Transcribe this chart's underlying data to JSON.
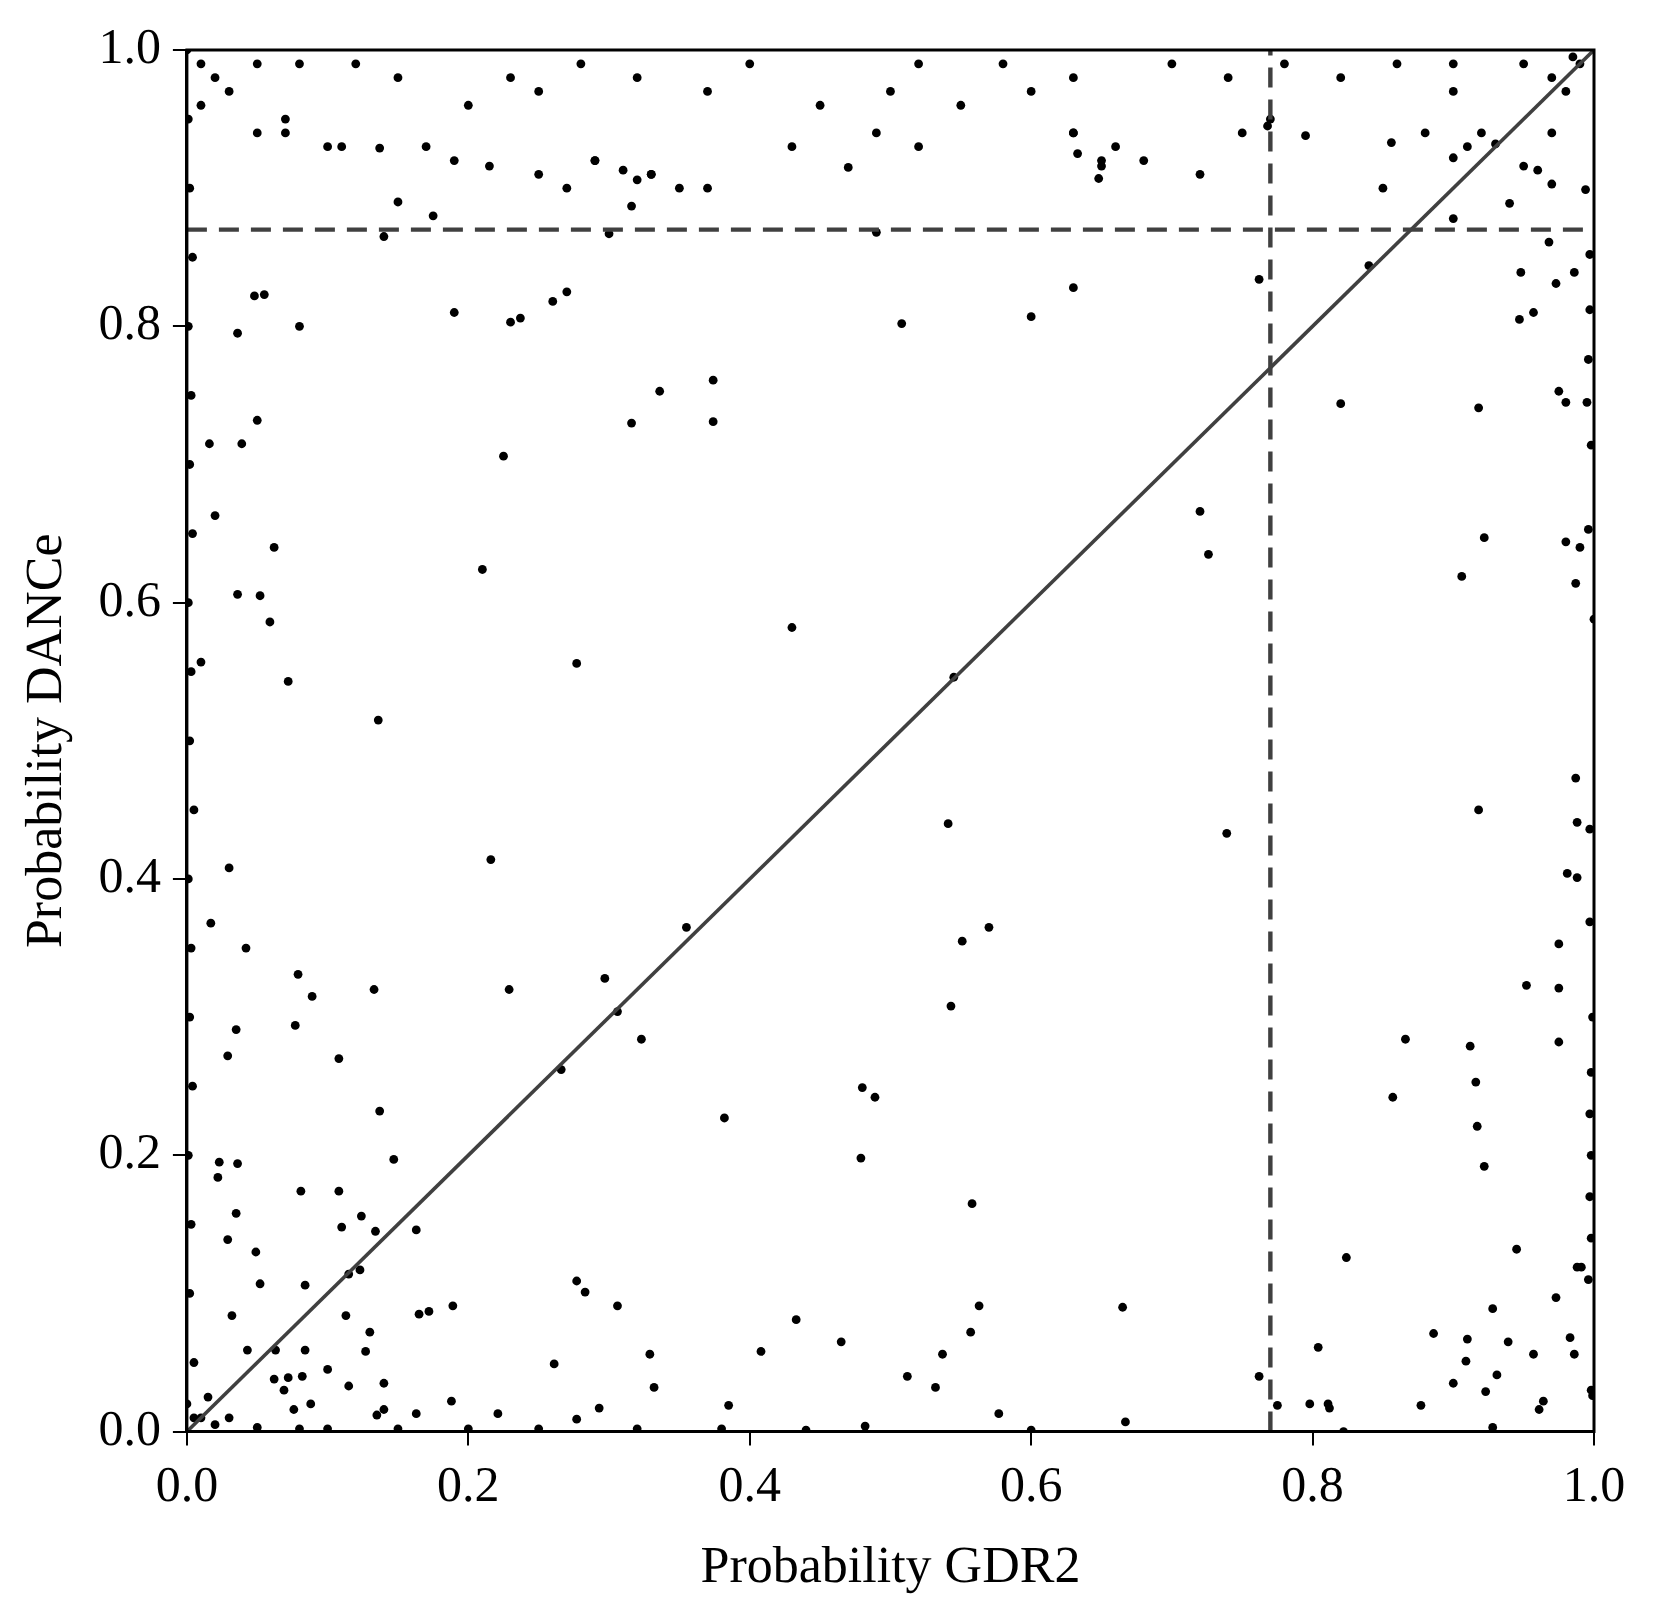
{
  "chart_data": {
    "type": "scatter",
    "xlabel": "Probability GDR2",
    "ylabel": "Probability DANCe",
    "xlim": [
      0,
      1
    ],
    "ylim": [
      0,
      1
    ],
    "xticks": [
      {
        "value": 0,
        "label": "0.0"
      },
      {
        "value": 0.2,
        "label": "0.2"
      },
      {
        "value": 0.4,
        "label": "0.4"
      },
      {
        "value": 0.6,
        "label": "0.6"
      },
      {
        "value": 0.8,
        "label": "0.8"
      },
      {
        "value": 1,
        "label": "1.0"
      }
    ],
    "yticks": [
      {
        "value": 0,
        "label": "0.0"
      },
      {
        "value": 0.2,
        "label": "0.2"
      },
      {
        "value": 0.4,
        "label": "0.4"
      },
      {
        "value": 0.6,
        "label": "0.6"
      },
      {
        "value": 0.8,
        "label": "0.8"
      },
      {
        "value": 1,
        "label": "1.0"
      }
    ],
    "grid": false,
    "legend": false,
    "ref_lines": [
      {
        "axis": "x",
        "value": 0.77,
        "color": "#404040",
        "line_style": "dashed"
      },
      {
        "axis": "y",
        "value": 0.87,
        "color": "#404040",
        "line_style": "dashed"
      }
    ],
    "series": [
      {
        "marker": "circle",
        "color": "#000000",
        "x": [
          0,
          0.01,
          0.02,
          0.01,
          0.03,
          0.05,
          0.07,
          0.08,
          0.12,
          0.15,
          0.2,
          0.23,
          0.25,
          0.28,
          0.32,
          0.37,
          0.4,
          0.45,
          0.5,
          0.52,
          0.55,
          0.58,
          0.63,
          0.65,
          0.7,
          0.74,
          0.78,
          0.82,
          0.86,
          0.9,
          0.95,
          0.97,
          0.99,
          0.985,
          0.98,
          0.05,
          0.07,
          0.1,
          0.11,
          0.17,
          0.19,
          0.25,
          0.27,
          0.29,
          0.33,
          0.37,
          0.43,
          0.49,
          0.52,
          0.6,
          0.63,
          0.66,
          0.68,
          0.72,
          0.75,
          0.77,
          0.85,
          0.88,
          0.9,
          0.91,
          0.92,
          0.97,
          0.137,
          0.215,
          0.29,
          0.31,
          0.32,
          0.33,
          0.316,
          0.35,
          0.47,
          0.15,
          0.175,
          0.14,
          0.3,
          0.49,
          0.048,
          0.055,
          0.036,
          0.08,
          0.19,
          0.23,
          0.237,
          0.26,
          0.27,
          0.336,
          0.374,
          0.374,
          0.316,
          0.05,
          0.039,
          0.016,
          0.225,
          0.02,
          0.062,
          0.21,
          0.036,
          0.052,
          0.059,
          0.43,
          0.277,
          0.072,
          0.136,
          0.01,
          0.508,
          0.6,
          0.63,
          0.762,
          0.84,
          0.9,
          0.94,
          0.9,
          0.95,
          0.96,
          0.97,
          0.93,
          0.968,
          0.948,
          0.986,
          0.973,
          0.947,
          0.957,
          0.82,
          0.918,
          0.975,
          0.98,
          0.995,
          0.998,
          0.72,
          0.726,
          0.922,
          0.98,
          0.99,
          0.996,
          0.906,
          0.987,
          1,
          0.545,
          0.994,
          0.997,
          0.997,
          0.996,
          0.768,
          0.795,
          0.856,
          0.63,
          0.633,
          0.65,
          0.648,
          0.216,
          0.03,
          0.355,
          0.042,
          0.017,
          0.079,
          0.089,
          0.133,
          0.229,
          0.297,
          0.306,
          0.323,
          0.077,
          0.035,
          0.029,
          0.108,
          0.266,
          0.48,
          0.489,
          0.382,
          0.479,
          0.137,
          0.147,
          0.023,
          0.036,
          0.022,
          0.081,
          0.108,
          0.035,
          0.124,
          0.11,
          0.134,
          0.163,
          0.029,
          0.049,
          0.115,
          0.123,
          0.052,
          0.084,
          0.277,
          0.283,
          0.189,
          0.306,
          0.165,
          0.172,
          0.113,
          0.032,
          0.433,
          0.465,
          0.408,
          0.13,
          0.127,
          0.043,
          0.063,
          0.084,
          0.329,
          0.261,
          0.1,
          0.062,
          0.072,
          0.082,
          0.115,
          0.14,
          0.332,
          0.069,
          0.088,
          0.076,
          0.385,
          0.293,
          0.188,
          0.14,
          0.135,
          0.221,
          0.163,
          0.482,
          0.277,
          0.05,
          0.08,
          0.1,
          0.15,
          0.2,
          0.25,
          0.32,
          0.38,
          0.44,
          0.6,
          0,
          0.005,
          0.002,
          0.003,
          0.001,
          0.004,
          0.002,
          0.003,
          0.001,
          0.005,
          0.002,
          0.003,
          0.001,
          0.004,
          0.002,
          0.003,
          0.001,
          0.004,
          0.002,
          0.001,
          0.01,
          0.02,
          0.005,
          0.03,
          0.015,
          0.541,
          0.739,
          0.57,
          0.551,
          0.543,
          0.558,
          0.563,
          0.665,
          0.557,
          0.537,
          0.512,
          0.532,
          0.577,
          0.667,
          0.762,
          0.775,
          0.798,
          0.811,
          0.812,
          0.804,
          0.824,
          0.822,
          0.866,
          0.857,
          0.918,
          0.912,
          0.916,
          0.917,
          0.922,
          0.952,
          0.975,
          0.975,
          0.975,
          0.987,
          0.988,
          0.997,
          0.981,
          0.988,
          0.997,
          0.999,
          0.998,
          0.997,
          0.998,
          0.997,
          0.998,
          0.996,
          0.998,
          0.945,
          0.928,
          0.973,
          0.988,
          0.991,
          0.886,
          0.91,
          0.939,
          0.957,
          0.909,
          0.931,
          0.9,
          0.923,
          0.877,
          0.961,
          0.964,
          0.928,
          0.983,
          0.986,
          0.999
        ],
        "values": [
          1,
          0.99,
          0.98,
          0.96,
          0.97,
          0.99,
          0.95,
          0.99,
          0.99,
          0.98,
          0.96,
          0.98,
          0.97,
          0.99,
          0.98,
          0.97,
          0.99,
          0.96,
          0.97,
          0.99,
          0.96,
          0.99,
          0.98,
          0.92,
          0.99,
          0.98,
          0.99,
          0.98,
          0.99,
          0.99,
          0.99,
          0.98,
          0.99,
          0.995,
          0.97,
          0.94,
          0.94,
          0.93,
          0.93,
          0.93,
          0.92,
          0.91,
          0.9,
          0.92,
          0.91,
          0.9,
          0.93,
          0.94,
          0.93,
          0.97,
          0.94,
          0.93,
          0.92,
          0.91,
          0.94,
          0.95,
          0.9,
          0.94,
          0.97,
          0.93,
          0.94,
          0.94,
          0.929,
          0.916,
          0.92,
          0.913,
          0.906,
          0.91,
          0.887,
          0.9,
          0.915,
          0.89,
          0.88,
          0.865,
          0.867,
          0.868,
          0.822,
          0.823,
          0.795,
          0.8,
          0.81,
          0.803,
          0.806,
          0.818,
          0.825,
          0.753,
          0.761,
          0.731,
          0.73,
          0.732,
          0.715,
          0.715,
          0.706,
          0.663,
          0.64,
          0.624,
          0.606,
          0.605,
          0.586,
          0.582,
          0.556,
          0.543,
          0.515,
          0.557,
          0.802,
          0.807,
          0.828,
          0.834,
          0.844,
          0.878,
          0.889,
          0.922,
          0.916,
          0.913,
          0.903,
          0.932,
          0.861,
          0.839,
          0.839,
          0.831,
          0.805,
          0.81,
          0.744,
          0.741,
          0.753,
          0.745,
          0.745,
          0.714,
          0.666,
          0.635,
          0.647,
          0.644,
          0.64,
          0.653,
          0.619,
          0.614,
          0.588,
          0.546,
          0.899,
          0.852,
          0.812,
          0.776,
          0.945,
          0.938,
          0.933,
          0.94,
          0.925,
          0.916,
          0.907,
          0.414,
          0.408,
          0.365,
          0.35,
          0.368,
          0.331,
          0.315,
          0.32,
          0.32,
          0.328,
          0.304,
          0.284,
          0.294,
          0.291,
          0.272,
          0.27,
          0.262,
          0.249,
          0.242,
          0.227,
          0.198,
          0.232,
          0.197,
          0.195,
          0.194,
          0.184,
          0.174,
          0.174,
          0.158,
          0.156,
          0.148,
          0.145,
          0.146,
          0.139,
          0.13,
          0.114,
          0.117,
          0.107,
          0.106,
          0.109,
          0.101,
          0.091,
          0.091,
          0.085,
          0.087,
          0.084,
          0.084,
          0.081,
          0.065,
          0.058,
          0.072,
          0.058,
          0.059,
          0.059,
          0.059,
          0.056,
          0.049,
          0.045,
          0.038,
          0.039,
          0.04,
          0.033,
          0.035,
          0.032,
          0.03,
          0.02,
          0.016,
          0.019,
          0.017,
          0.022,
          0.016,
          0.012,
          0.013,
          0.013,
          0.004,
          0.009,
          0.003,
          0.002,
          0.002,
          0.002,
          0.002,
          0.002,
          0.002,
          0.002,
          0.001,
          0.001,
          0.02,
          0.05,
          0.1,
          0.15,
          0.2,
          0.25,
          0.3,
          0.35,
          0.4,
          0.45,
          0.5,
          0.55,
          0.6,
          0.65,
          0.7,
          0.75,
          0.8,
          0.85,
          0.9,
          0.95,
          0.01,
          0.005,
          0.01,
          0.01,
          0.025,
          0.44,
          0.433,
          0.365,
          0.355,
          0.308,
          0.165,
          0.091,
          0.09,
          0.072,
          0.056,
          0.04,
          0.032,
          0.013,
          0.007,
          0.04,
          0.019,
          0.02,
          0.02,
          0.017,
          0.061,
          0.126,
          0,
          0.284,
          0.242,
          0.45,
          0.279,
          0.253,
          0.221,
          0.192,
          0.323,
          0.353,
          0.321,
          0.282,
          0.473,
          0.441,
          0.436,
          0.404,
          0.401,
          0.369,
          0.3,
          0.26,
          0.23,
          0.2,
          0.17,
          0.14,
          0.11,
          0.03,
          0.132,
          0.089,
          0.097,
          0.119,
          0.119,
          0.071,
          0.067,
          0.065,
          0.056,
          0.051,
          0.041,
          0.035,
          0.029,
          0.019,
          0.016,
          0.022,
          0.003,
          0.068,
          0.056,
          0.026
        ]
      },
      {
        "type": "line",
        "marker": "none",
        "color": "#404040",
        "x": [
          0,
          1
        ],
        "values": [
          0,
          1
        ]
      }
    ]
  }
}
